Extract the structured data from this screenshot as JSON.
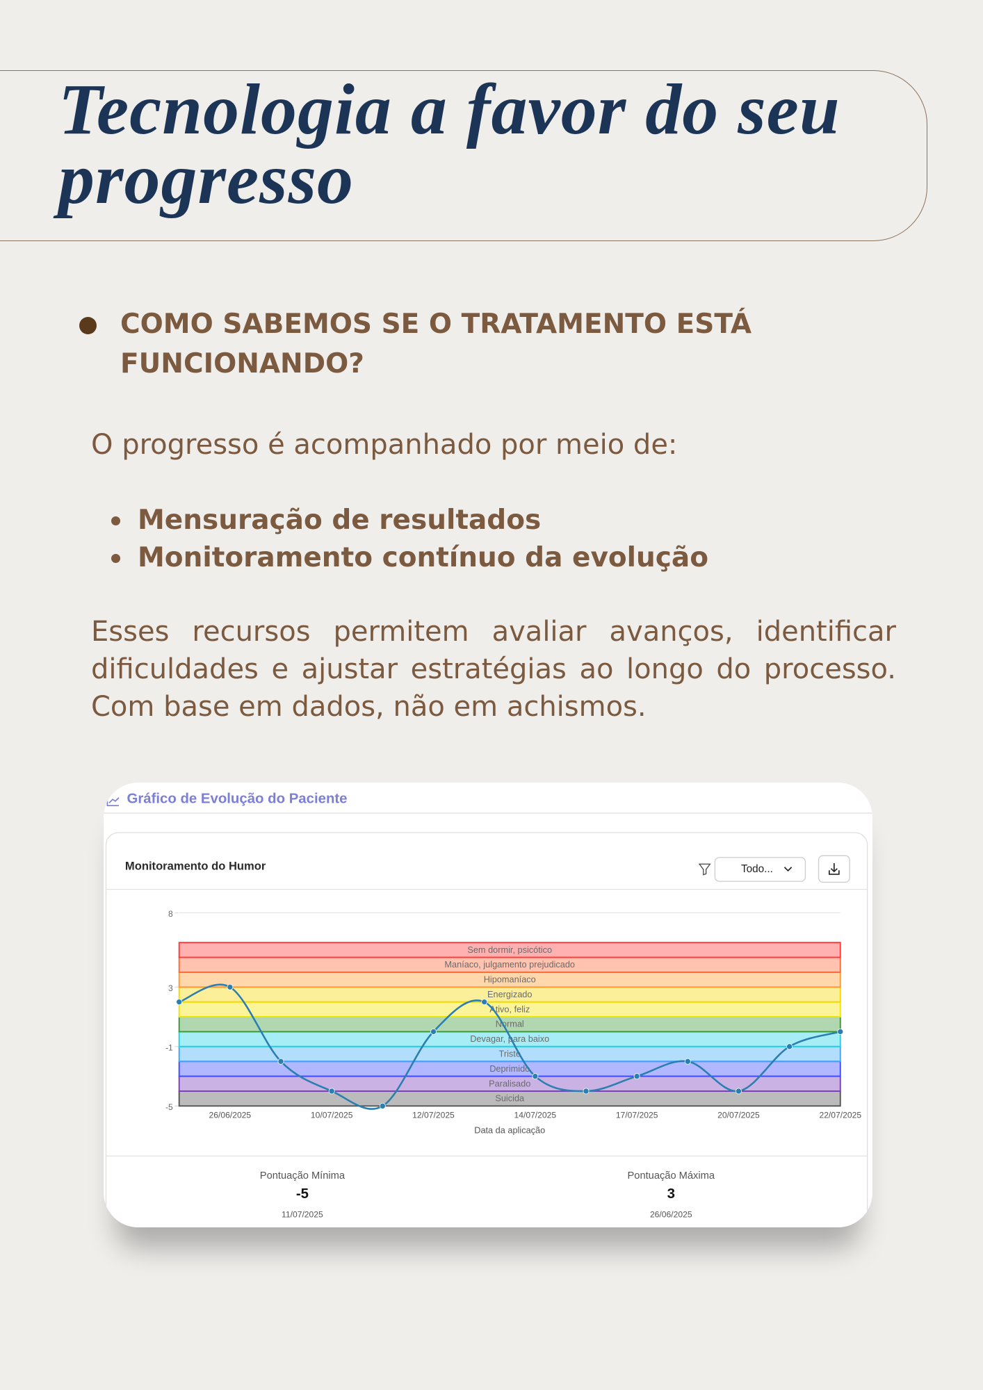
{
  "header": {
    "title": "Tecnologia a favor do seu progresso"
  },
  "section": {
    "heading": "COMO SABEMOS SE O TRATAMENTO ESTÁ FUNCIONANDO?",
    "intro": "O progresso é acompanhado por meio de:",
    "bullets": [
      "Mensuração de resultados",
      "Monitoramento contínuo da evolução"
    ],
    "paragraph": "Esses recursos permitem avaliar avanços, identificar dificuldades e ajustar estratégias ao longo do processo. Com base em dados, não em achismos."
  },
  "panel": {
    "title": "Gráfico de Evolução do Paciente",
    "card_title": "Monitoramento do Humor",
    "filter": "Todo...",
    "chart_data": {
      "type": "line",
      "x_label": "Data da aplicação",
      "categories": [
        null,
        "26/06/2025",
        null,
        "10/07/2025",
        null,
        "12/07/2025",
        null,
        "14/07/2025",
        null,
        "17/07/2025",
        null,
        "20/07/2025",
        null,
        "22/07/2025"
      ],
      "values": [
        2,
        3,
        -2,
        -4,
        -5,
        0,
        2,
        -3,
        -4,
        -3,
        -2,
        -4,
        -1,
        0
      ],
      "color": "#2a7fb0",
      "ylim": [
        -5,
        8
      ],
      "yticks": [
        8,
        3,
        -1,
        -5
      ],
      "bands": [
        {
          "label": "Suicida",
          "from": -5,
          "to": -4,
          "color": "#555555"
        },
        {
          "label": "Paralisado",
          "from": -4,
          "to": -3,
          "color": "#7e3fbf"
        },
        {
          "label": "Deprimido",
          "from": -3,
          "to": -2,
          "color": "#3f4dff"
        },
        {
          "label": "Triste",
          "from": -2,
          "to": -1,
          "color": "#3fa9f5"
        },
        {
          "label": "Devagar, para baixo",
          "from": -1,
          "to": 0,
          "color": "#22d3e6"
        },
        {
          "label": "Normal",
          "from": 0,
          "to": 1,
          "color": "#3a9a3a"
        },
        {
          "label": "Ativo, feliz",
          "from": 1,
          "to": 2,
          "color": "#f5e400"
        },
        {
          "label": "Energizado",
          "from": 2,
          "to": 3,
          "color": "#f5d800"
        },
        {
          "label": "Hipomaníaco",
          "from": 3,
          "to": 4,
          "color": "#ff9a2e"
        },
        {
          "label": "Maníaco, julgamento prejudicado",
          "from": 4,
          "to": 5,
          "color": "#ff6a3a"
        },
        {
          "label": "Sem dormir, psicótico",
          "from": 5,
          "to": 6,
          "color": "#ff3b3b"
        }
      ]
    },
    "stats": [
      {
        "label": "Pontuação Mínima",
        "value": -5,
        "date": "11/07/2025"
      },
      {
        "label": "Pontuação Máxima",
        "value": 3,
        "date": "26/06/2025"
      }
    ]
  }
}
